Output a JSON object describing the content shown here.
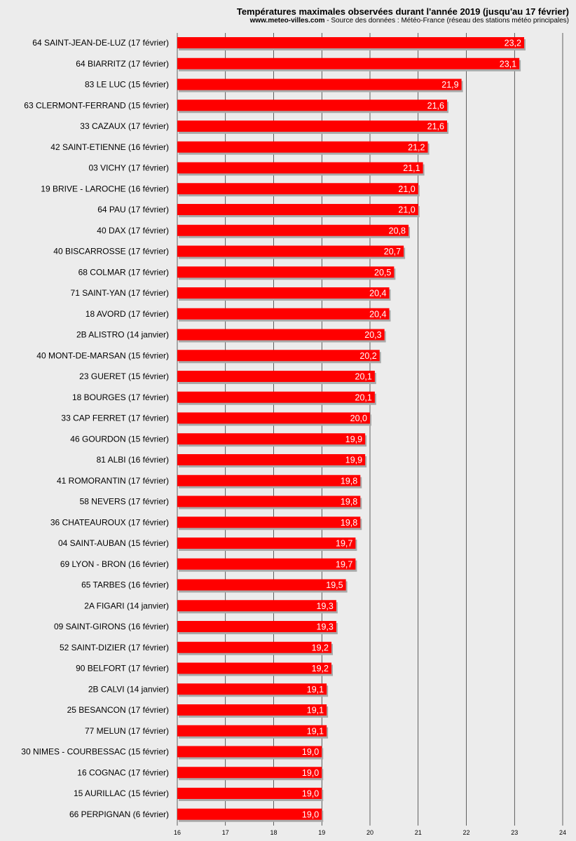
{
  "header": {
    "title": "Températures maximales observées durant l'année 2019 (jusqu'au 17 février)",
    "site": "www.meteo-villes.com",
    "source": " - Source des données : Météo-France (réseau des stations météo principales)"
  },
  "colors": {
    "bar": "#ff0000",
    "shadow": "#a9a9a9",
    "grid": "#000000",
    "background": "#ececec"
  },
  "chart_data": {
    "type": "bar",
    "orientation": "horizontal",
    "title": "Températures maximales observées durant l'année 2019 (jusqu'au 17 février)",
    "xlim": [
      16,
      24
    ],
    "xticks": [
      "16",
      "17",
      "18",
      "19",
      "20",
      "21",
      "22",
      "23",
      "24"
    ],
    "grid": true,
    "categories": [
      "64 SAINT-JEAN-DE-LUZ (17 février)",
      "64 BIARRITZ (17 février)",
      "83 LE LUC (15 février)",
      "63 CLERMONT-FERRAND (15 février)",
      "33 CAZAUX (17 février)",
      "42 SAINT-ETIENNE (16 février)",
      "03 VICHY (17 février)",
      "19 BRIVE - LAROCHE (16 février)",
      "64 PAU (17 février)",
      "40 DAX (17 février)",
      "40 BISCARROSSE (17 février)",
      "68 COLMAR (17 février)",
      "71 SAINT-YAN (17 février)",
      "18 AVORD (17 février)",
      "2B ALISTRO (14 janvier)",
      "40 MONT-DE-MARSAN (15 février)",
      "23 GUERET (15 février)",
      "18 BOURGES (17 février)",
      "33 CAP FERRET (17 février)",
      "46 GOURDON (15 février)",
      "81 ALBI (16 février)",
      "41 ROMORANTIN (17 février)",
      "58 NEVERS (17 février)",
      "36 CHATEAUROUX (17 février)",
      "04 SAINT-AUBAN (15 février)",
      "69 LYON - BRON (16 février)",
      "65 TARBES (16 février)",
      "2A FIGARI (14 janvier)",
      "09 SAINT-GIRONS (16 février)",
      "52 SAINT-DIZIER (17 février)",
      "90 BELFORT (17 février)",
      "2B CALVI (14 janvier)",
      "25 BESANCON (17 février)",
      "77 MELUN (17 février)",
      "30 NIMES - COURBESSAC (15 février)",
      "16 COGNAC (17 février)",
      "15 AURILLAC (15 février)",
      "66 PERPIGNAN (6 février)"
    ],
    "values": [
      23.2,
      23.1,
      21.9,
      21.6,
      21.6,
      21.2,
      21.1,
      21.0,
      21.0,
      20.8,
      20.7,
      20.5,
      20.4,
      20.4,
      20.3,
      20.2,
      20.1,
      20.1,
      20.0,
      19.9,
      19.9,
      19.8,
      19.8,
      19.8,
      19.7,
      19.7,
      19.5,
      19.3,
      19.3,
      19.2,
      19.2,
      19.1,
      19.1,
      19.1,
      19.0,
      19.0,
      19.0,
      19.0
    ],
    "value_labels": [
      "23,2",
      "23,1",
      "21,9",
      "21,6",
      "21,6",
      "21,2",
      "21,1",
      "21,0",
      "21,0",
      "20,8",
      "20,7",
      "20,5",
      "20,4",
      "20,4",
      "20,3",
      "20,2",
      "20,1",
      "20,1",
      "20,0",
      "19,9",
      "19,9",
      "19,8",
      "19,8",
      "19,8",
      "19,7",
      "19,7",
      "19,5",
      "19,3",
      "19,3",
      "19,2",
      "19,2",
      "19,1",
      "19,1",
      "19,1",
      "19,0",
      "19,0",
      "19,0",
      "19,0"
    ]
  }
}
